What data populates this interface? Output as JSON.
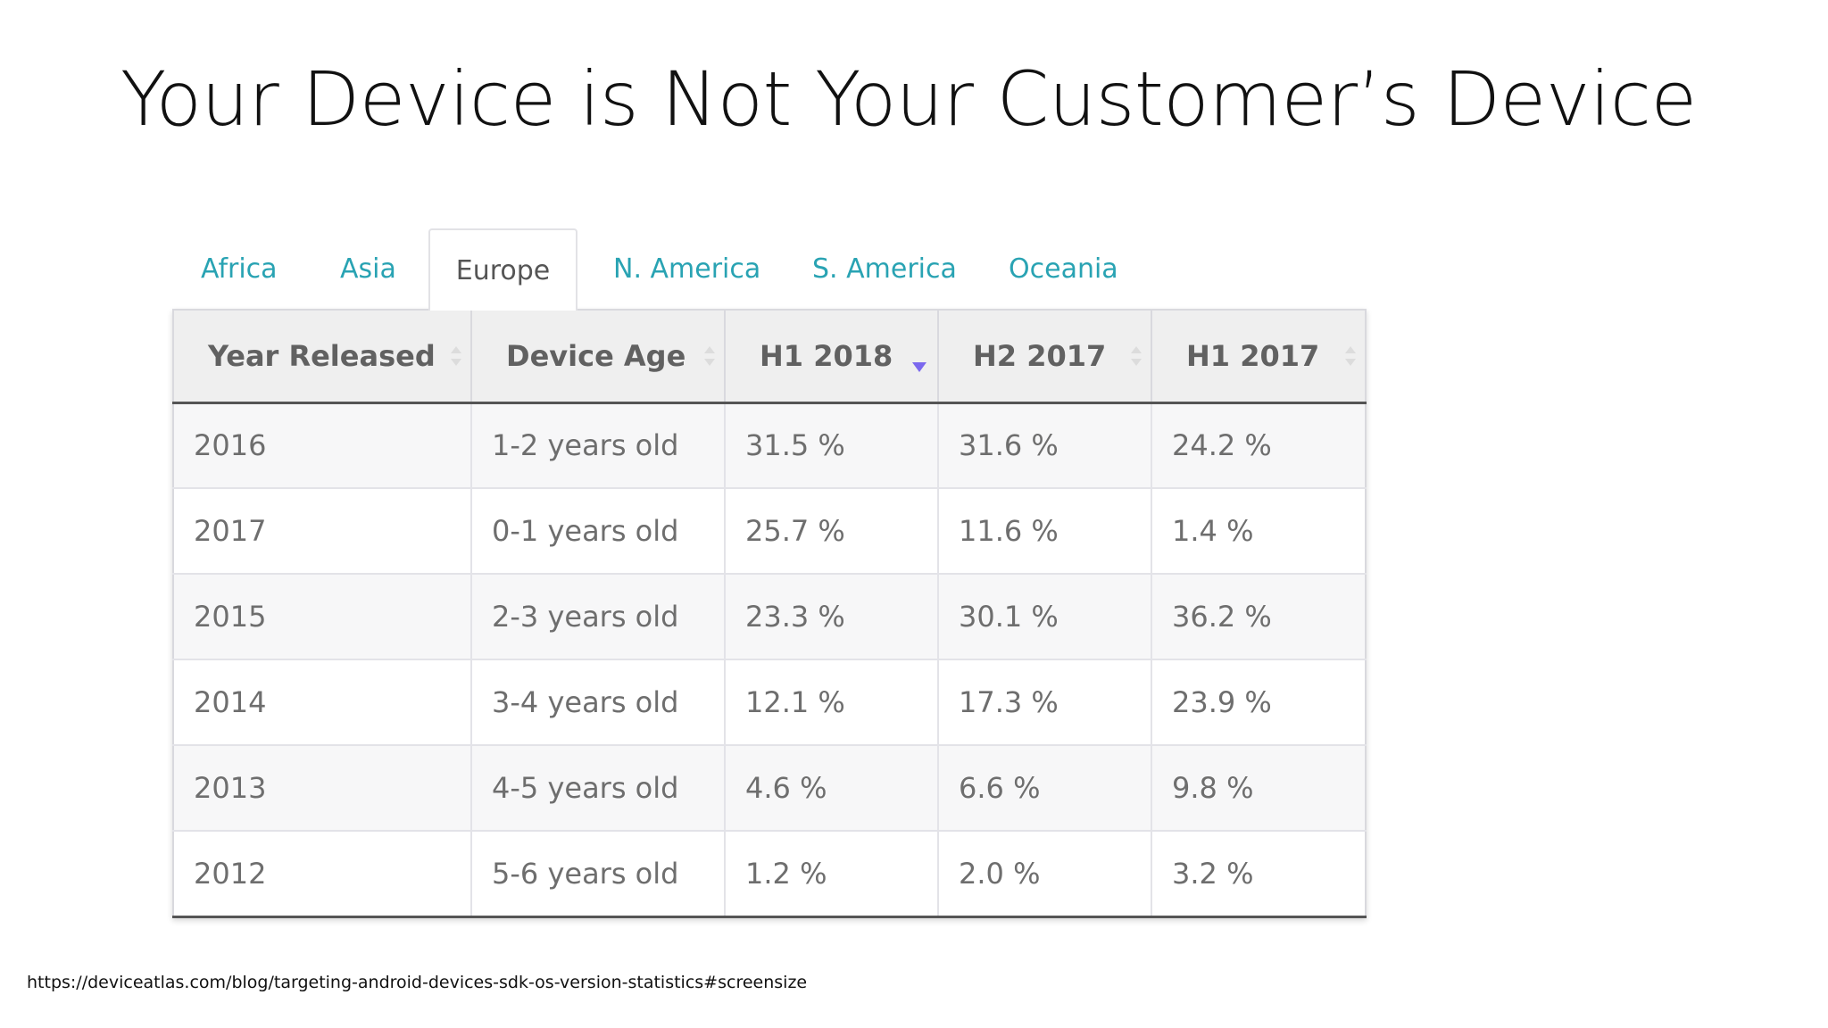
{
  "slide": {
    "title": "Your Device is Not Your Customer’s Device",
    "source": "https://deviceatlas.com/blog/targeting-android-devices-sdk-os-version-statistics#screensize"
  },
  "tabs": [
    {
      "label": "Africa",
      "active": false
    },
    {
      "label": "Asia",
      "active": false
    },
    {
      "label": "Europe",
      "active": true
    },
    {
      "label": "N. America",
      "active": false
    },
    {
      "label": "S. America",
      "active": false
    },
    {
      "label": "Oceania",
      "active": false
    }
  ],
  "table": {
    "columns": [
      "Year Released",
      "Device Age",
      "H1 2018",
      "H2 2017",
      "H1 2017"
    ],
    "sorted_column": "H1 2018",
    "sort_direction": "descending",
    "sort_indicator_color": "#7b68ee",
    "rows": [
      [
        "2016",
        "1-2 years old",
        "31.5 %",
        "31.6 %",
        "24.2 %"
      ],
      [
        "2017",
        "0-1 years old",
        "25.7 %",
        "11.6 %",
        "1.4 %"
      ],
      [
        "2015",
        "2-3 years old",
        "23.3 %",
        "30.1 %",
        "36.2 %"
      ],
      [
        "2014",
        "3-4 years old",
        "12.1 %",
        "17.3 %",
        "23.9 %"
      ],
      [
        "2013",
        "4-5 years old",
        "4.6 %",
        "6.6 %",
        "9.8 %"
      ],
      [
        "2012",
        "5-6 years old",
        "1.2 %",
        "2.0 %",
        "3.2 %"
      ]
    ]
  },
  "colors": {
    "tab_link": "#29a3b3",
    "header_bg": "#efefef"
  }
}
